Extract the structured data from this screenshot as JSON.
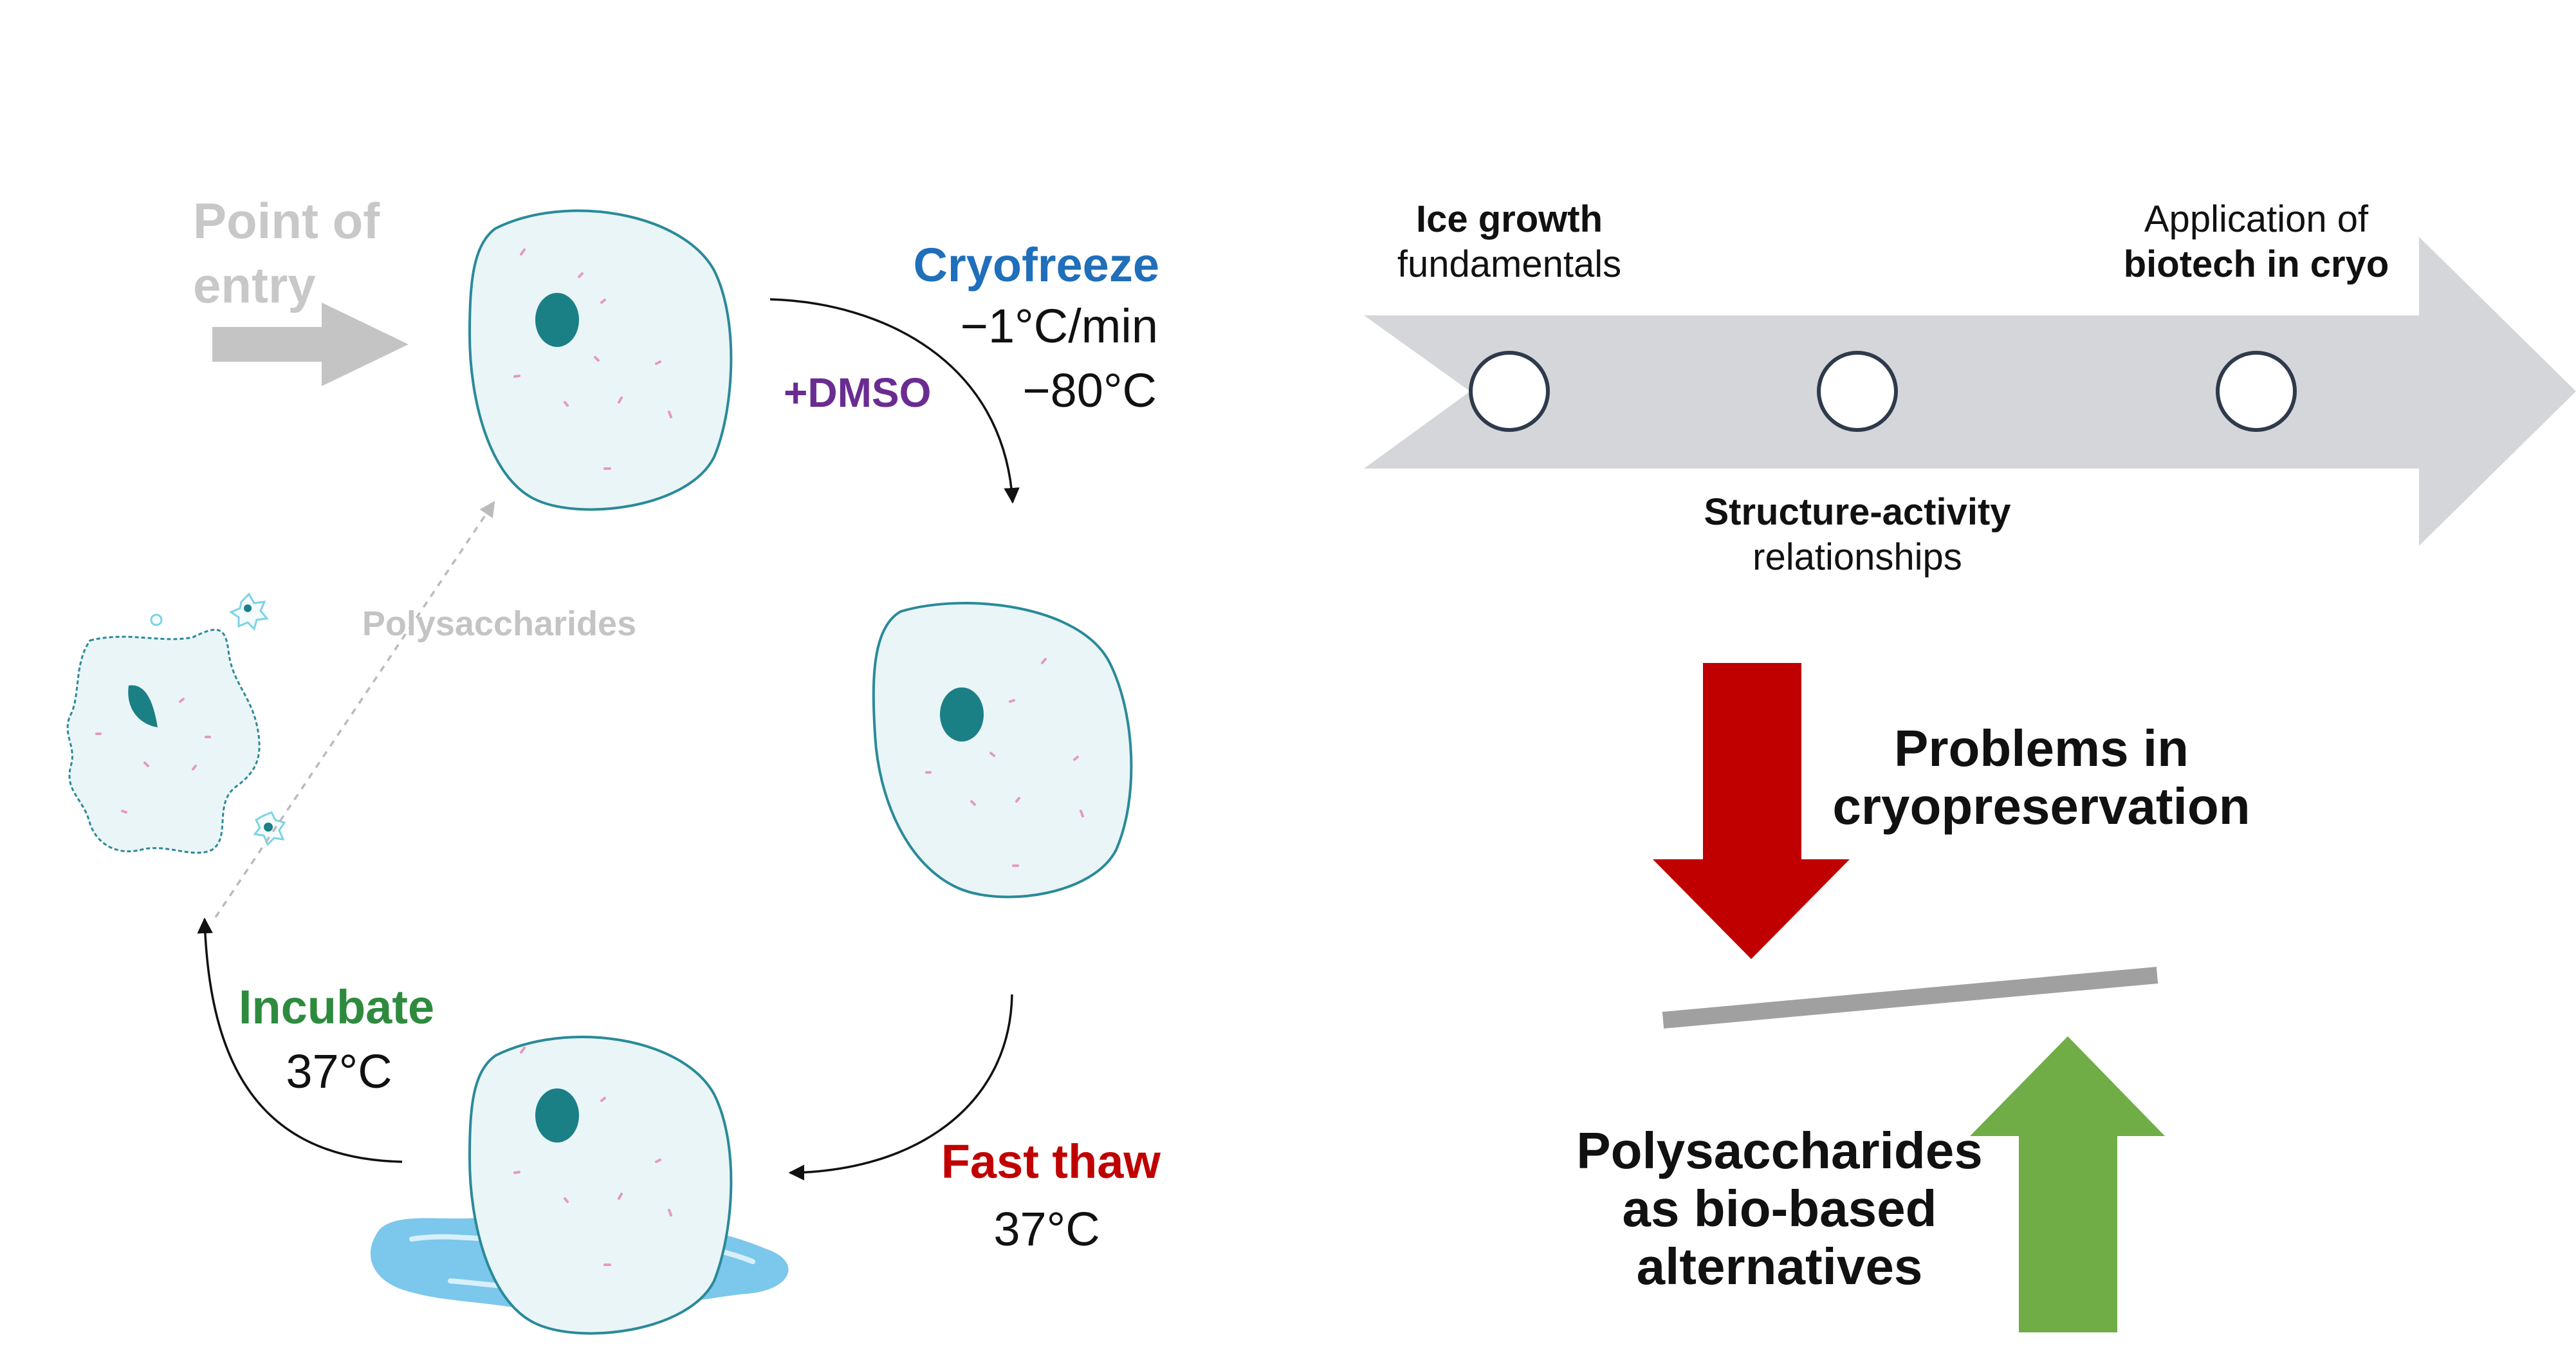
{
  "entry": {
    "line1": "Point of",
    "line2": "entry"
  },
  "cryofreeze": {
    "title": "Cryofreeze",
    "rate": "−1°C/min",
    "temp": "−80°C"
  },
  "dmso": "+DMSO",
  "fast_thaw": {
    "title": "Fast thaw",
    "temp": "37°C"
  },
  "incubate": {
    "title": "Incubate",
    "temp": "37°C"
  },
  "polysaccharides_label": "Polysaccharides",
  "timeline": {
    "ice_growth": {
      "bold": "Ice growth",
      "regular": "fundamentals"
    },
    "application": {
      "regular": "Application of",
      "bold": "biotech in cryo"
    },
    "structure": {
      "bold": "Structure-activity",
      "regular": "relationships"
    }
  },
  "problems": {
    "line1": "Problems in",
    "line2": "cryopreservation"
  },
  "alternatives": {
    "line1": "Polysaccharides",
    "line2": "as bio-based",
    "line3": "alternatives"
  },
  "colors": {
    "cryofreeze": "#1f6fba",
    "dmso": "#6a2c91",
    "fast_thaw": "#c00000",
    "incubate": "#2e8b3e",
    "entry_gray": "#c8c8c8",
    "timeline_gray": "#d4d6d9",
    "red_arrow": "#c00000",
    "green_arrow": "#70ad47",
    "cell_fill": "#eaf5f7",
    "cell_stroke": "#2a8a99",
    "nucleus": "#1b7f86"
  }
}
